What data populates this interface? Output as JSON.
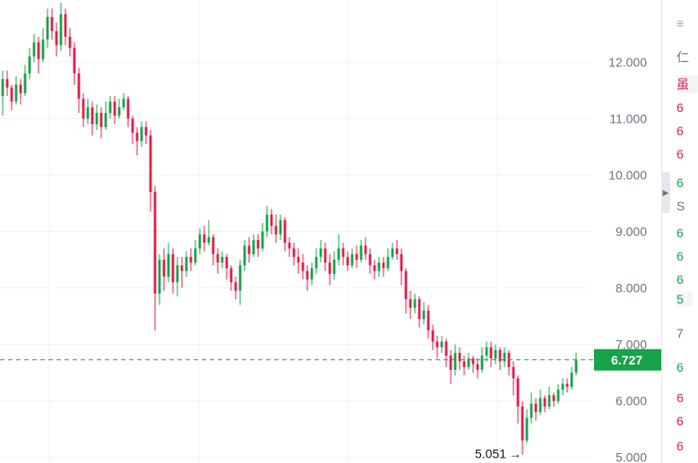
{
  "chart_data": {
    "type": "candlestick",
    "ylim": [
      4.9,
      13.1
    ],
    "y_ticks": [
      "5.000",
      "6.000",
      "7.000",
      "8.000",
      "9.000",
      "10.000",
      "11.000",
      "12.000"
    ],
    "current_price": 6.727,
    "current_price_label": "6.727",
    "low_label": "5.051",
    "low_arrow": "→",
    "colors": {
      "up": "#16a34a",
      "down": "#e11d48",
      "current": "#16a34a",
      "grid": "#f1f3f5"
    },
    "candles": [
      [
        11.4,
        11.7,
        11.05,
        11.85
      ],
      [
        11.7,
        11.55,
        11.4,
        11.85
      ],
      [
        11.55,
        11.3,
        11.15,
        11.6
      ],
      [
        11.3,
        11.6,
        11.25,
        11.75
      ],
      [
        11.6,
        11.45,
        11.25,
        11.7
      ],
      [
        11.45,
        11.8,
        11.4,
        11.95
      ],
      [
        11.8,
        12.1,
        11.7,
        12.25
      ],
      [
        12.1,
        12.35,
        12.0,
        12.5
      ],
      [
        12.35,
        12.05,
        11.8,
        12.45
      ],
      [
        12.05,
        12.4,
        12.0,
        12.6
      ],
      [
        12.4,
        12.8,
        12.25,
        12.95
      ],
      [
        12.8,
        12.55,
        12.4,
        12.95
      ],
      [
        12.55,
        12.3,
        12.1,
        12.7
      ],
      [
        12.3,
        12.85,
        12.2,
        13.05
      ],
      [
        12.85,
        12.45,
        12.3,
        12.95
      ],
      [
        12.45,
        12.25,
        12.1,
        12.6
      ],
      [
        12.25,
        11.8,
        11.6,
        12.35
      ],
      [
        11.8,
        11.35,
        11.1,
        11.9
      ],
      [
        11.35,
        11.0,
        10.85,
        11.45
      ],
      [
        11.0,
        11.2,
        10.9,
        11.35
      ],
      [
        11.2,
        10.9,
        10.7,
        11.3
      ],
      [
        10.9,
        11.1,
        10.8,
        11.25
      ],
      [
        11.1,
        10.85,
        10.65,
        11.2
      ],
      [
        10.85,
        11.1,
        10.8,
        11.3
      ],
      [
        11.1,
        11.3,
        11.0,
        11.4
      ],
      [
        11.3,
        11.05,
        10.9,
        11.4
      ],
      [
        11.05,
        11.2,
        11.0,
        11.35
      ],
      [
        11.2,
        11.35,
        11.15,
        11.45
      ],
      [
        11.35,
        11.0,
        10.85,
        11.4
      ],
      [
        11.0,
        10.75,
        10.55,
        11.05
      ],
      [
        10.75,
        10.6,
        10.35,
        10.85
      ],
      [
        10.6,
        10.85,
        10.5,
        10.95
      ],
      [
        10.85,
        10.7,
        10.55,
        10.95
      ],
      [
        10.7,
        9.7,
        9.35,
        10.8
      ],
      [
        9.7,
        7.9,
        7.25,
        9.8
      ],
      [
        7.9,
        8.5,
        7.7,
        8.6
      ],
      [
        8.5,
        8.2,
        7.95,
        8.7
      ],
      [
        8.2,
        8.6,
        8.1,
        8.8
      ],
      [
        8.6,
        8.1,
        7.9,
        8.7
      ],
      [
        8.1,
        8.4,
        7.85,
        8.55
      ],
      [
        8.4,
        8.3,
        8.0,
        8.55
      ],
      [
        8.3,
        8.55,
        8.2,
        8.65
      ],
      [
        8.55,
        8.45,
        8.3,
        8.7
      ],
      [
        8.45,
        8.7,
        8.4,
        8.85
      ],
      [
        8.7,
        8.95,
        8.6,
        9.05
      ],
      [
        8.95,
        8.8,
        8.65,
        9.1
      ],
      [
        8.8,
        8.9,
        8.75,
        9.2
      ],
      [
        8.9,
        8.6,
        8.4,
        8.95
      ],
      [
        8.6,
        8.45,
        8.25,
        8.7
      ],
      [
        8.45,
        8.55,
        8.35,
        8.65
      ],
      [
        8.55,
        8.35,
        8.15,
        8.6
      ],
      [
        8.35,
        8.1,
        7.95,
        8.4
      ],
      [
        8.1,
        7.95,
        7.8,
        8.2
      ],
      [
        7.95,
        8.4,
        7.7,
        8.5
      ],
      [
        8.4,
        8.75,
        8.3,
        8.85
      ],
      [
        8.75,
        8.6,
        8.45,
        8.9
      ],
      [
        8.6,
        8.85,
        8.55,
        8.95
      ],
      [
        8.85,
        8.7,
        8.55,
        8.95
      ],
      [
        8.7,
        9.0,
        8.65,
        9.15
      ],
      [
        9.0,
        9.3,
        8.9,
        9.45
      ],
      [
        9.3,
        9.1,
        8.95,
        9.4
      ],
      [
        9.1,
        8.95,
        8.8,
        9.3
      ],
      [
        8.95,
        9.2,
        8.85,
        9.3
      ],
      [
        9.2,
        8.8,
        8.65,
        9.25
      ],
      [
        8.8,
        8.7,
        8.55,
        8.9
      ],
      [
        8.7,
        8.55,
        8.4,
        8.8
      ],
      [
        8.55,
        8.45,
        8.25,
        8.7
      ],
      [
        8.45,
        8.3,
        8.15,
        8.6
      ],
      [
        8.3,
        8.15,
        7.95,
        8.4
      ],
      [
        8.15,
        8.35,
        8.05,
        8.45
      ],
      [
        8.35,
        8.55,
        8.25,
        8.7
      ],
      [
        8.55,
        8.7,
        8.45,
        8.85
      ],
      [
        8.7,
        8.45,
        8.3,
        8.8
      ],
      [
        8.45,
        8.25,
        8.05,
        8.6
      ],
      [
        8.25,
        8.5,
        8.15,
        8.65
      ],
      [
        8.5,
        8.7,
        8.4,
        8.95
      ],
      [
        8.7,
        8.55,
        8.4,
        8.8
      ],
      [
        8.55,
        8.4,
        8.3,
        8.65
      ],
      [
        8.4,
        8.6,
        8.35,
        8.7
      ],
      [
        8.6,
        8.5,
        8.35,
        8.75
      ],
      [
        8.5,
        8.75,
        8.45,
        8.85
      ],
      [
        8.75,
        8.6,
        8.5,
        8.9
      ],
      [
        8.6,
        8.4,
        8.25,
        8.7
      ],
      [
        8.4,
        8.3,
        8.15,
        8.5
      ],
      [
        8.3,
        8.45,
        8.2,
        8.55
      ],
      [
        8.45,
        8.35,
        8.2,
        8.55
      ],
      [
        8.35,
        8.55,
        8.3,
        8.7
      ],
      [
        8.55,
        8.7,
        8.5,
        8.8
      ],
      [
        8.7,
        8.6,
        8.5,
        8.85
      ],
      [
        8.6,
        8.3,
        8.05,
        8.7
      ],
      [
        8.3,
        7.8,
        7.55,
        8.35
      ],
      [
        7.8,
        7.65,
        7.45,
        7.95
      ],
      [
        7.65,
        7.8,
        7.55,
        7.9
      ],
      [
        7.8,
        7.45,
        7.3,
        7.85
      ],
      [
        7.45,
        7.6,
        7.35,
        7.75
      ],
      [
        7.6,
        7.25,
        7.1,
        7.7
      ],
      [
        7.25,
        7.05,
        6.9,
        7.35
      ],
      [
        7.05,
        6.95,
        6.75,
        7.15
      ],
      [
        6.95,
        7.05,
        6.85,
        7.15
      ],
      [
        7.05,
        6.8,
        6.6,
        7.1
      ],
      [
        6.8,
        6.55,
        6.3,
        6.9
      ],
      [
        6.55,
        6.85,
        6.45,
        7.0
      ],
      [
        6.85,
        6.7,
        6.55,
        6.95
      ],
      [
        6.7,
        6.6,
        6.45,
        6.8
      ],
      [
        6.6,
        6.75,
        6.55,
        6.85
      ],
      [
        6.75,
        6.65,
        6.5,
        6.8
      ],
      [
        6.65,
        6.55,
        6.4,
        6.75
      ],
      [
        6.55,
        6.8,
        6.5,
        6.95
      ],
      [
        6.8,
        6.95,
        6.7,
        7.05
      ],
      [
        6.95,
        6.75,
        6.6,
        7.05
      ],
      [
        6.75,
        6.9,
        6.65,
        7.0
      ],
      [
        6.9,
        6.7,
        6.55,
        6.95
      ],
      [
        6.7,
        6.85,
        6.6,
        6.95
      ],
      [
        6.85,
        6.6,
        6.45,
        6.9
      ],
      [
        6.6,
        6.4,
        6.1,
        6.7
      ],
      [
        6.4,
        5.9,
        5.6,
        6.45
      ],
      [
        5.9,
        5.3,
        5.05,
        6.0
      ],
      [
        5.3,
        5.7,
        5.25,
        5.85
      ],
      [
        5.7,
        5.95,
        5.6,
        6.15
      ],
      [
        5.95,
        5.8,
        5.65,
        6.05
      ],
      [
        5.8,
        6.05,
        5.75,
        6.2
      ],
      [
        6.05,
        5.9,
        5.8,
        6.1
      ],
      [
        5.9,
        6.1,
        5.85,
        6.25
      ],
      [
        6.1,
        6.0,
        5.9,
        6.15
      ],
      [
        6.0,
        6.2,
        5.95,
        6.3
      ],
      [
        6.2,
        6.3,
        6.1,
        6.4
      ],
      [
        6.3,
        6.25,
        6.15,
        6.4
      ],
      [
        6.25,
        6.5,
        6.2,
        6.6
      ],
      [
        6.5,
        6.73,
        6.45,
        6.85
      ]
    ]
  },
  "side_panel": {
    "rows": [
      {
        "text": "≡",
        "color": "#9ca3af",
        "y": 28
      },
      {
        "text": "仁",
        "color": "#6b7280",
        "y": 64
      },
      {
        "text": "虽",
        "color": "#e11d48",
        "y": 94,
        "tint": true
      },
      {
        "text": "6",
        "color": "#e11d48",
        "y": 122
      },
      {
        "text": "6",
        "color": "#e11d48",
        "y": 148
      },
      {
        "text": "6",
        "color": "#e11d48",
        "y": 174
      },
      {
        "text": "6",
        "color": "#16a34a",
        "y": 206
      },
      {
        "text": "S",
        "color": "#6b7280",
        "y": 232
      },
      {
        "text": "6",
        "color": "#16a34a",
        "y": 262
      },
      {
        "text": "6",
        "color": "#16a34a",
        "y": 288
      },
      {
        "text": "6",
        "color": "#16a34a",
        "y": 314
      },
      {
        "text": "5",
        "color": "#16a34a",
        "y": 336,
        "tint": true
      },
      {
        "text": "7",
        "color": "#6b7280",
        "y": 374
      },
      {
        "text": "6",
        "color": "#16a34a",
        "y": 412
      },
      {
        "text": "6",
        "color": "#e11d48",
        "y": 446
      },
      {
        "text": "6",
        "color": "#e11d48",
        "y": 472
      },
      {
        "text": "6",
        "color": "#e11d48",
        "y": 500
      }
    ]
  }
}
